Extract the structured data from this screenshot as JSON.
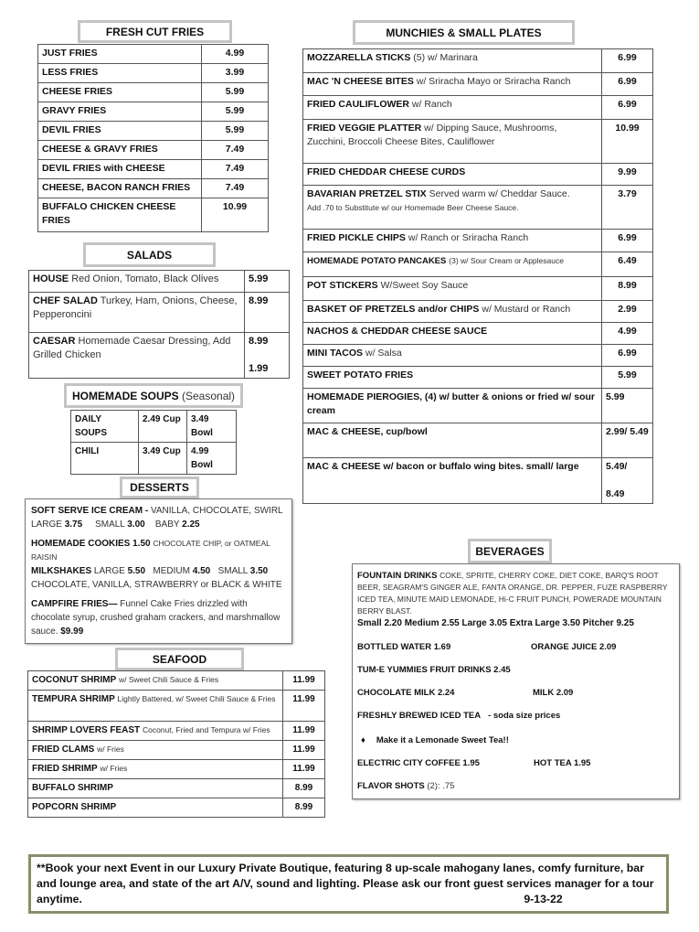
{
  "fries": {
    "title": "FRESH CUT FRIES",
    "items": [
      {
        "name": "JUST FRIES",
        "price": "4.99"
      },
      {
        "name": "LESS FRIES",
        "price": "3.99"
      },
      {
        "name": "CHEESE FRIES",
        "price": "5.99"
      },
      {
        "name": "GRAVY FRIES",
        "price": "5.99"
      },
      {
        "name": "DEVIL FRIES",
        "price": "5.99"
      },
      {
        "name": "CHEESE & GRAVY FRIES",
        "price": "7.49"
      },
      {
        "name": "DEVIL FRIES with CHEESE",
        "price": "7.49"
      },
      {
        "name": "CHEESE, BACON RANCH FRIES",
        "price": "7.49"
      },
      {
        "name": "BUFFALO CHICKEN CHEESE FRIES",
        "price": "10.99"
      }
    ]
  },
  "salads": {
    "title": "SALADS",
    "items": [
      {
        "name": "HOUSE",
        "desc": "Red Onion, Tomato, Black Olives",
        "price": "5.99"
      },
      {
        "name": "CHEF SALAD",
        "desc": "Turkey, Ham, Onions, Cheese, Pepperoncini",
        "price": "8.99"
      },
      {
        "name": "CAESAR",
        "desc": "Homemade Caesar Dressing, Add Grilled Chicken",
        "price": "8.99",
        "price2": "1.99"
      }
    ]
  },
  "soups": {
    "title": "HOMEMADE SOUPS",
    "subtitle": "(Seasonal)",
    "items": [
      {
        "name": "DAILY SOUPS",
        "cup": "2.49 Cup",
        "bowl": "3.49 Bowl"
      },
      {
        "name": "CHILI",
        "cup": "3.49 Cup",
        "bowl": "4.99 Bowl"
      }
    ]
  },
  "desserts": {
    "title": "DESSERTS",
    "soft_serve": {
      "name": "SOFT SERVE ICE CREAM -",
      "flavors": "VANILLA, CHOCOLATE,  SWIRL",
      "l": "LARGE",
      "lp": "3.75",
      "s": "SMALL",
      "sp": "3.00",
      "b": "BABY",
      "bp": "2.25"
    },
    "cookies": {
      "name": "HOMEMADE COOKIES",
      "price": "1.50",
      "desc": "CHOCOLATE CHIP, or OATMEAL RAISIN"
    },
    "milkshakes": {
      "name": "MILKSHAKES",
      "l": "LARGE",
      "lp": "5.50",
      "m": "MEDIUM",
      "mp": "4.50",
      "s": "SMALL",
      "sp": "3.50",
      "flavors": "CHOCOLATE, VANILLA,  STRAWBERRY or BLACK & WHITE"
    },
    "campfire": {
      "name": "CAMPFIRE FRIES—",
      "desc": "Funnel Cake Fries drizzled with chocolate syrup, crushed graham crackers, and marshmallow sauce.",
      "price": "$9.99"
    }
  },
  "seafood": {
    "title": "SEAFOOD",
    "items": [
      {
        "name": "COCONUT SHRIMP",
        "desc": "w/ Sweet Chili Sauce & Fries",
        "price": "11.99"
      },
      {
        "name": "TEMPURA SHRIMP",
        "desc": "Lightly Battered, w/ Sweet Chili Sauce & Fries",
        "price": "11.99"
      },
      {
        "name": "SHRIMP LOVERS FEAST",
        "desc": "Coconut, Fried and Tempura w/ Fries",
        "price": "11.99"
      },
      {
        "name": "FRIED CLAMS",
        "desc": "w/ Fries",
        "price": "11.99"
      },
      {
        "name": "FRIED SHRIMP",
        "desc": "w/ Fries",
        "price": "11.99"
      },
      {
        "name": "BUFFALO SHRIMP",
        "desc": "",
        "price": "8.99"
      },
      {
        "name": "POPCORN SHRIMP",
        "desc": "",
        "price": "8.99"
      }
    ]
  },
  "munchies": {
    "title": "MUNCHIES & SMALL PLATES",
    "items": [
      {
        "name": "MOZZARELLA STICKS",
        "desc": " (5) w/ Marinara",
        "price": "6.99"
      },
      {
        "name": "MAC 'N CHEESE BITES",
        "desc": "w/ Sriracha Mayo or Sriracha Ranch",
        "price": "6.99"
      },
      {
        "name": "FRIED CAULIFLOWER",
        "desc": "w/ Ranch",
        "price": "6.99"
      },
      {
        "name": "FRIED VEGGIE PLATTER",
        "desc": "w/ Dipping Sauce, Mushrooms, Zucchini, Broccoli Cheese Bites, Cauliflower",
        "price": "10.99"
      },
      {
        "name": "FRIED CHEDDAR CHEESE CURDS",
        "desc": "",
        "price": "9.99"
      },
      {
        "name": "BAVARIAN PRETZEL STIX",
        "desc": "Served warm w/ Cheddar Sauce.",
        "note": "Add  .70  to Substitute w/ our Homemade Beer Cheese Sauce.",
        "price": "3.79"
      },
      {
        "name": "FRIED PICKLE CHIPS",
        "desc": "w/ Ranch or Sriracha Ranch",
        "price": "6.99"
      },
      {
        "name": "HOMEMADE POTATO PANCAKES",
        "desc": "(3) w/ Sour Cream or Applesauce",
        "price": "6.49"
      },
      {
        "name": "POT STICKERS",
        "desc": "W/Sweet Soy Sauce",
        "price": "8.99"
      },
      {
        "name": "BASKET OF PRETZELS and/or CHIPS",
        "desc": "w/ Mustard or Ranch",
        "price": "2.99"
      },
      {
        "name": "NACHOS & CHEDDAR CHEESE SAUCE",
        "desc": "",
        "price": "4.99"
      },
      {
        "name": "MINI TACOS",
        "desc": "w/ Salsa",
        "price": "6.99"
      },
      {
        "name": "SWEET POTATO FRIES",
        "desc": "",
        "price": "5.99"
      },
      {
        "name": "HOMEMADE PIEROGIES, (4) w/ butter & onions or fried w/ sour cream",
        "desc": "",
        "price": "5.99"
      },
      {
        "name": "MAC & CHEESE, cup/bowl",
        "desc": "",
        "price": "2.99/ 5.49"
      },
      {
        "name": "MAC & CHEESE w/ bacon or buffalo wing bites. small/ large",
        "desc": "",
        "price": "5.49/",
        "price2": "8.49"
      }
    ]
  },
  "beverages": {
    "title": "BEVERAGES",
    "fountain": {
      "name": "FOUNTAIN DRINKS",
      "list": "COKE, SPRITE, CHERRY COKE, DIET COKE, BARQ'S ROOT BEER, SEAGRAM'S GINGER ALE, FANTA ORANGE, DR. PEPPER, FUZE RASPBERRY ICED TEA, MINUTE MAID LEMONADE, Hi-C FRUIT PUNCH, POWERADE MOUNTAIN BERRY BLAST.",
      "sizes": "Small 2.20   Medium 2.55   Large 3.05    Extra Large  3.50   Pitcher  9.25"
    },
    "bottled_water": "BOTTLED WATER   1.69",
    "orange_juice": "ORANGE JUICE   2.09",
    "tume": "TUM-E YUMMIES FRUIT DRINKS  2.45",
    "choc_milk": "CHOCOLATE MILK  2.24",
    "milk": "MILK   2.09",
    "iced_tea": "FRESHLY BREWED ICED TEA",
    "iced_tea_note": "- soda size prices",
    "lemonade_bullet": "♦",
    "lemonade": "Make it a Lemonade Sweet Tea!!",
    "coffee": "ELECTRIC CITY COFFEE   1.95",
    "hot_tea": "HOT TEA    1.95",
    "flavor": "FLAVOR SHOTS",
    "flavor_note": "(2):  .75"
  },
  "footer": {
    "text": "**Book your next Event in our Luxury Private Boutique, featuring 8 up-scale mahogany lanes, comfy furniture, bar and lounge area, and state of the art A/V, sound and lighting.  Please ask our front guest services manager for a tour anytime.",
    "date": "9-13-22"
  }
}
